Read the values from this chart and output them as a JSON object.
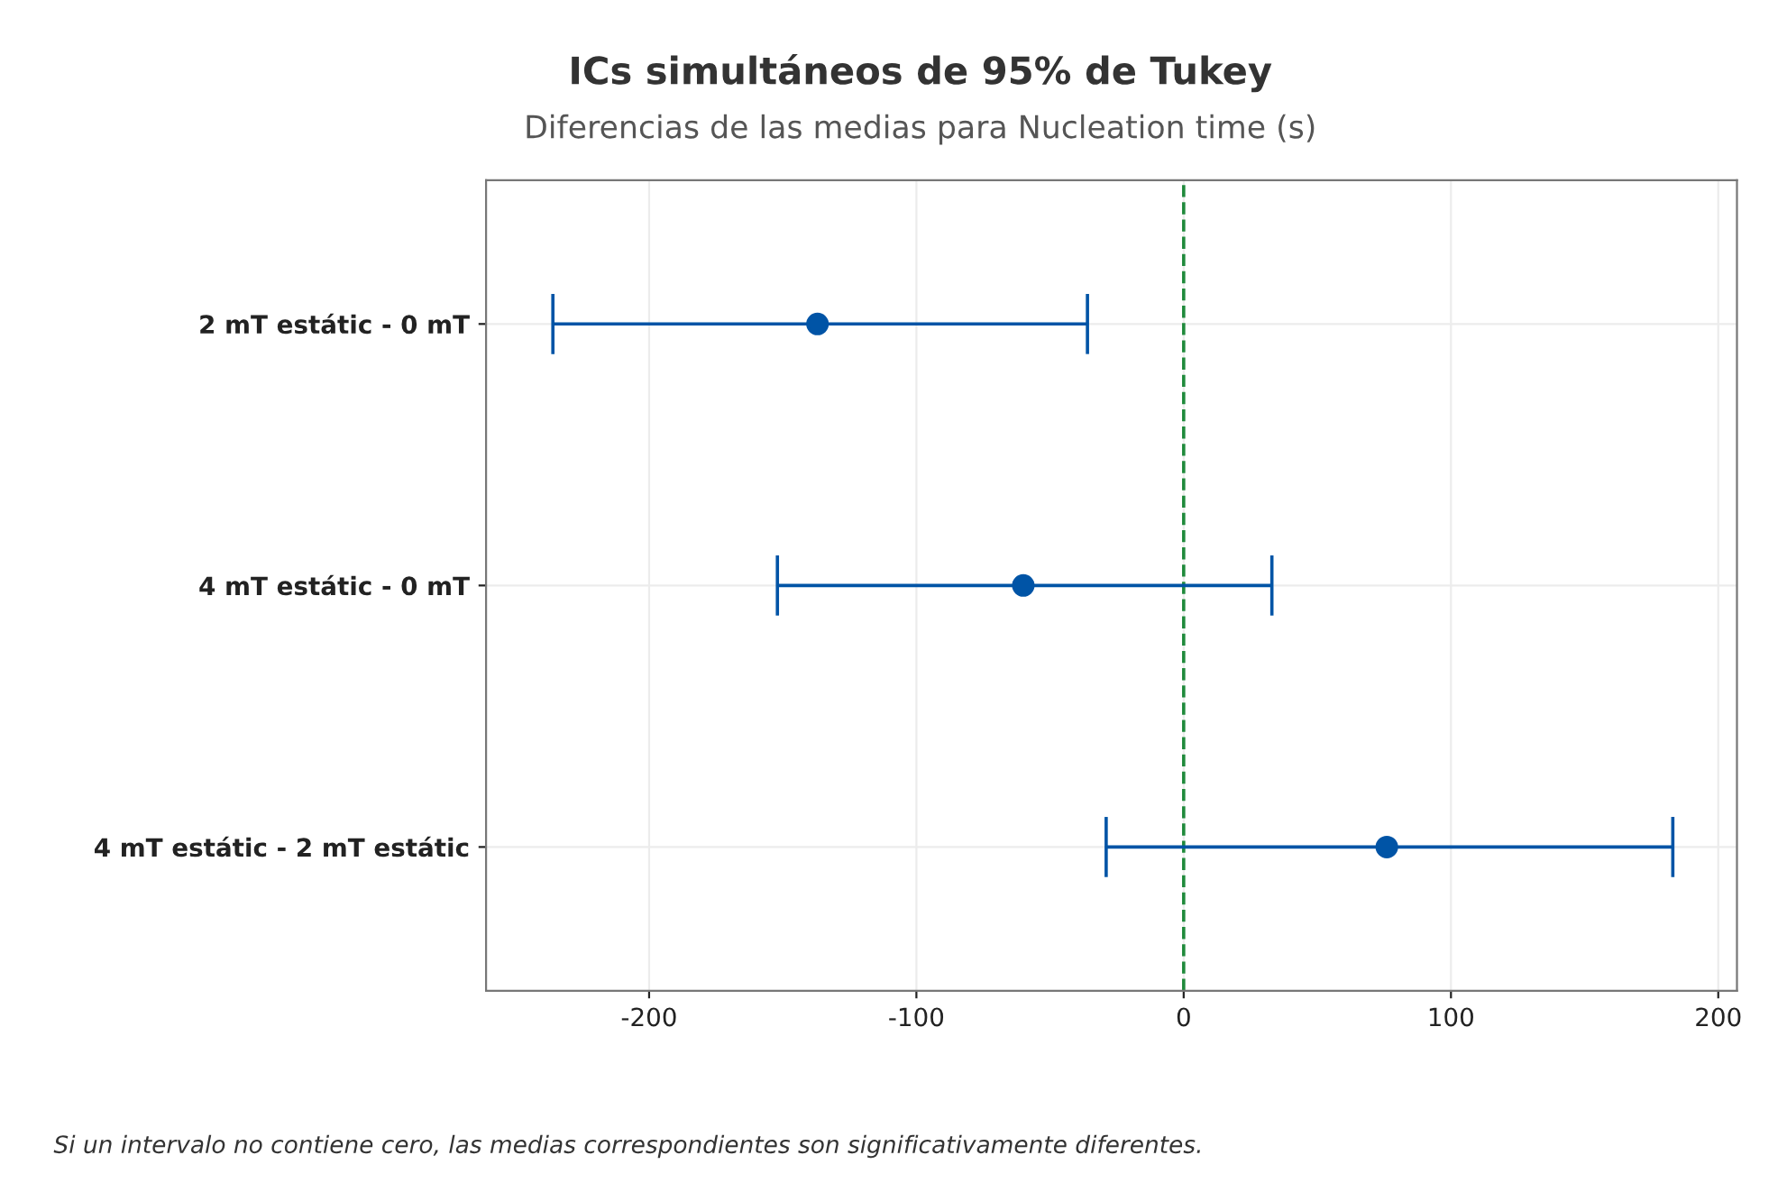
{
  "chart_data": {
    "type": "scatter",
    "orientation": "horizontal",
    "title": "ICs simultáneos de 95% de Tukey",
    "subtitle": "Diferencias de las medias para Nucleation time (s)",
    "categories": [
      "2 mT estátic - 0 mT",
      "4 mT estátic - 0 mT",
      "4 mT estátic - 2 mT estátic"
    ],
    "values": [
      -137,
      -60,
      76
    ],
    "errors": [
      [
        -236,
        -36
      ],
      [
        -152,
        33
      ],
      [
        -29,
        183
      ]
    ],
    "color": "#0054a6",
    "marker": "circle",
    "xlim": [
      -261,
      207
    ],
    "xticks": [
      -200,
      -100,
      0,
      100,
      200
    ],
    "grid": true,
    "ref_lines": [
      {
        "axis": "x",
        "value": 0,
        "color": "#208a3c",
        "line_style": "dashed"
      }
    ],
    "annotations": [
      "Si un intervalo no contiene cero, las medias correspondientes son significativamente diferentes."
    ]
  }
}
